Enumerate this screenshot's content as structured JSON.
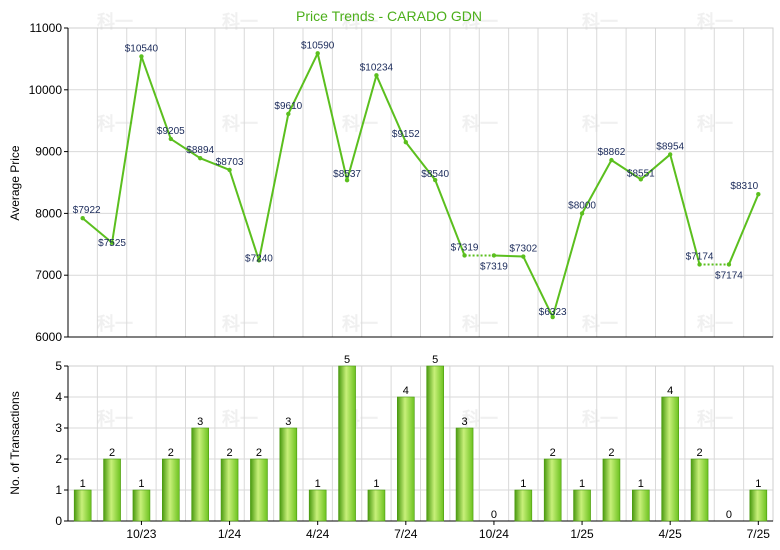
{
  "chart_data": [
    {
      "type": "line",
      "title": "Price Trends - CARADO GDN",
      "ylabel": "Average Price",
      "ylim": [
        6000,
        11000
      ],
      "yticks": [
        6000,
        7000,
        8000,
        9000,
        10000,
        11000
      ],
      "grid": true,
      "series": [
        {
          "values": [
            7922,
            7525,
            10540,
            9205,
            8894,
            8703,
            7240,
            9610,
            10590,
            8537,
            10234,
            9152,
            8540,
            7319,
            7319,
            7302,
            6323,
            8000,
            8862,
            8551,
            8954,
            7174,
            7174,
            8310
          ],
          "labels": [
            "$7922",
            "$7525",
            "$10540",
            "$9205",
            "$8894",
            "$8703",
            "$7240",
            "$9610",
            "$10590",
            "$8537",
            "$10234",
            "$9152",
            "$8540",
            "$7319",
            "$7319",
            "$7302",
            "$6323",
            "$8000",
            "$8862",
            "$8551",
            "$8954",
            "$7174",
            "$7174",
            "$8310"
          ],
          "color": "#5bbf1e"
        }
      ]
    },
    {
      "type": "bar",
      "ylabel": "No. of Transactions",
      "ylim": [
        0,
        5
      ],
      "yticks": [
        0,
        1,
        2,
        3,
        4,
        5
      ],
      "grid": true,
      "values": [
        1,
        2,
        1,
        2,
        3,
        2,
        2,
        3,
        1,
        5,
        1,
        4,
        5,
        3,
        0,
        1,
        2,
        1,
        2,
        1,
        4,
        2,
        0,
        1
      ],
      "xtick_labels": [
        "10/23",
        "1/24",
        "4/24",
        "7/24",
        "10/24",
        "1/25",
        "4/25",
        "7/25"
      ],
      "color": "#6cc21f"
    }
  ],
  "watermark": "科一"
}
